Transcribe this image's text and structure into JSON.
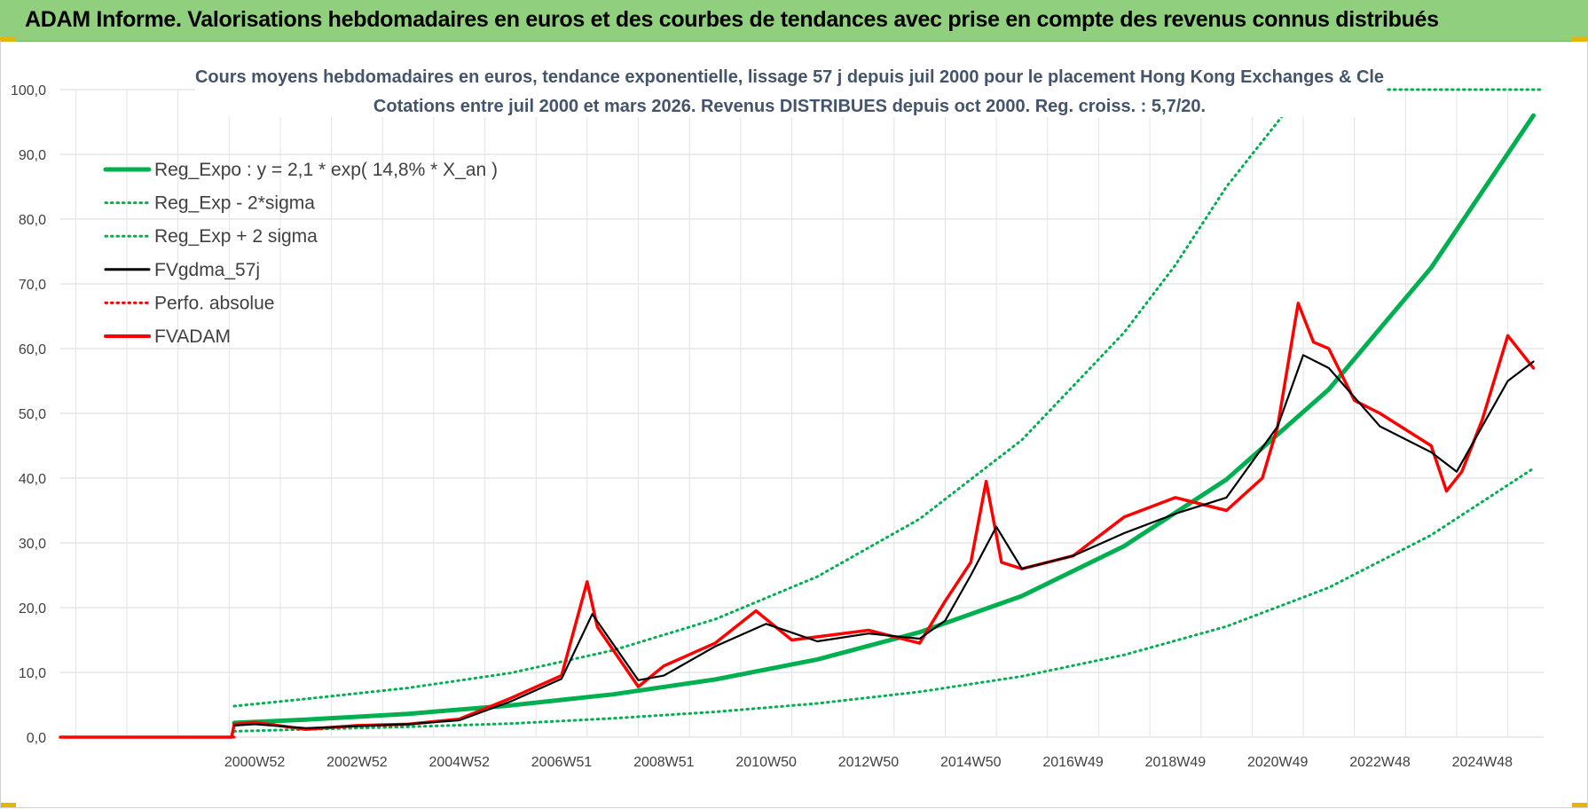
{
  "banner": {
    "title": "ADAM Informe. Valorisations hebdomadaires en euros et des courbes de tendances avec prise en compte des revenus connus distribués",
    "background": "#8fcf7e"
  },
  "chart_data": {
    "type": "line",
    "title": "Cours moyens hebdomadaires en euros, tendance exponentielle, lissage 57 j depuis juil 2000 pour le placement Hong Kong Exchanges & Cle",
    "subtitle": "Cotations entre juil 2000 et mars 2026. Revenus DISTRIBUES depuis oct 2000. Reg. croiss. : 5,7/20.",
    "xlabel": "",
    "ylabel": "",
    "xlim": [
      1997.2,
      2026.2
    ],
    "ylim": [
      0,
      100
    ],
    "y_ticks": [
      "0,0",
      "10,0",
      "20,0",
      "30,0",
      "40,0",
      "50,0",
      "60,0",
      "70,0",
      "80,0",
      "90,0",
      "100,0"
    ],
    "x_ticks": [
      {
        "label": "2000W52",
        "x": 2001.0
      },
      {
        "label": "2002W52",
        "x": 2003.0
      },
      {
        "label": "2004W52",
        "x": 2005.0
      },
      {
        "label": "2006W51",
        "x": 2007.0
      },
      {
        "label": "2008W51",
        "x": 2009.0
      },
      {
        "label": "2010W50",
        "x": 2011.0
      },
      {
        "label": "2012W50",
        "x": 2013.0
      },
      {
        "label": "2014W50",
        "x": 2015.0
      },
      {
        "label": "2016W49",
        "x": 2017.0
      },
      {
        "label": "2018W49",
        "x": 2019.0
      },
      {
        "label": "2020W49",
        "x": 2021.0
      },
      {
        "label": "2022W48",
        "x": 2023.0
      },
      {
        "label": "2024W48",
        "x": 2025.0
      }
    ],
    "grid": true,
    "legend_position": "top-left",
    "series": [
      {
        "name": "Reg_Expo : y = 2,1 * exp( 14,8% *  X_an )",
        "color": "#00b050",
        "style": "solid-thick",
        "x": [
          2000.6,
          2002,
          2004,
          2006,
          2008,
          2010,
          2012,
          2014,
          2016,
          2018,
          2020,
          2022,
          2024,
          2026
        ],
        "y": [
          2.2,
          2.7,
          3.6,
          4.9,
          6.6,
          8.9,
          12.0,
          16.2,
          21.8,
          29.5,
          39.8,
          53.7,
          72.5,
          96.0
        ]
      },
      {
        "name": "Reg_Exp - 2*sigma",
        "color": "#00b050",
        "style": "dotted",
        "x": [
          2000.6,
          2002,
          2004,
          2006,
          2008,
          2010,
          2012,
          2014,
          2016,
          2018,
          2020,
          2022,
          2024,
          2026
        ],
        "y": [
          0.9,
          1.2,
          1.6,
          2.1,
          2.9,
          3.9,
          5.2,
          7.0,
          9.4,
          12.7,
          17.1,
          23.1,
          31.2,
          41.5
        ]
      },
      {
        "name": "Reg_Exp + 2 sigma",
        "color": "#00b050",
        "style": "dotted",
        "x": [
          2000.6,
          2002,
          2004,
          2006,
          2008,
          2010,
          2012,
          2014,
          2016,
          2018,
          2019,
          2020,
          2021.5
        ],
        "y": [
          4.8,
          5.9,
          7.6,
          9.9,
          13.4,
          18.2,
          24.8,
          33.7,
          45.9,
          62.5,
          72.9,
          85.0,
          100.0
        ]
      },
      {
        "name": "FVgdma_57j",
        "color": "#000000",
        "style": "solid",
        "x": [
          2000.6,
          2001,
          2002,
          2003,
          2004,
          2005,
          2006,
          2007,
          2007.6,
          2008.5,
          2009,
          2010,
          2011,
          2012,
          2013,
          2014,
          2014.5,
          2015,
          2015.5,
          2016,
          2017,
          2018,
          2019,
          2020,
          2021,
          2021.5,
          2022,
          2023,
          2024,
          2024.5,
          2025,
          2025.5,
          2026
        ],
        "y": [
          1.8,
          2.0,
          1.4,
          1.7,
          2.0,
          2.6,
          5.5,
          9.0,
          19.0,
          8.8,
          9.5,
          14.0,
          17.5,
          14.8,
          16.0,
          15.2,
          18.0,
          25.0,
          32.5,
          26.0,
          28.0,
          31.5,
          34.5,
          37.0,
          48.0,
          59.0,
          57.0,
          48.0,
          44.0,
          41.0,
          48.0,
          55.0,
          58.0
        ]
      },
      {
        "name": "Perfo. absolue",
        "color": "#ff0000",
        "style": "dotted",
        "x": [
          1997.2,
          2000.6
        ],
        "y": [
          0,
          0
        ]
      },
      {
        "name": "FVADAM",
        "color": "#ff0000",
        "style": "solid-thick",
        "x": [
          1997.2,
          2000.55,
          2000.6,
          2001,
          2002,
          2003,
          2004,
          2005,
          2006,
          2007,
          2007.5,
          2007.7,
          2008.5,
          2009,
          2010,
          2010.8,
          2011.5,
          2012,
          2013,
          2014,
          2014.5,
          2015.0,
          2015.3,
          2015.6,
          2016,
          2017,
          2018,
          2019,
          2020,
          2020.7,
          2021,
          2021.4,
          2021.7,
          2022,
          2022.5,
          2023,
          2024,
          2024.3,
          2024.6,
          2025,
          2025.5,
          2026
        ],
        "y": [
          0,
          0,
          2.0,
          2.3,
          1.2,
          1.8,
          2.0,
          2.8,
          6.0,
          9.5,
          24.0,
          17.0,
          7.8,
          11.0,
          14.5,
          19.5,
          15.0,
          15.5,
          16.5,
          14.5,
          21.0,
          27.0,
          39.5,
          27.0,
          26.0,
          28.0,
          34.0,
          37.0,
          35.0,
          40.0,
          48.0,
          67.0,
          61.0,
          60.0,
          52.0,
          50.0,
          45.0,
          38.0,
          41.0,
          49.0,
          62.0,
          57.0
        ]
      }
    ]
  }
}
